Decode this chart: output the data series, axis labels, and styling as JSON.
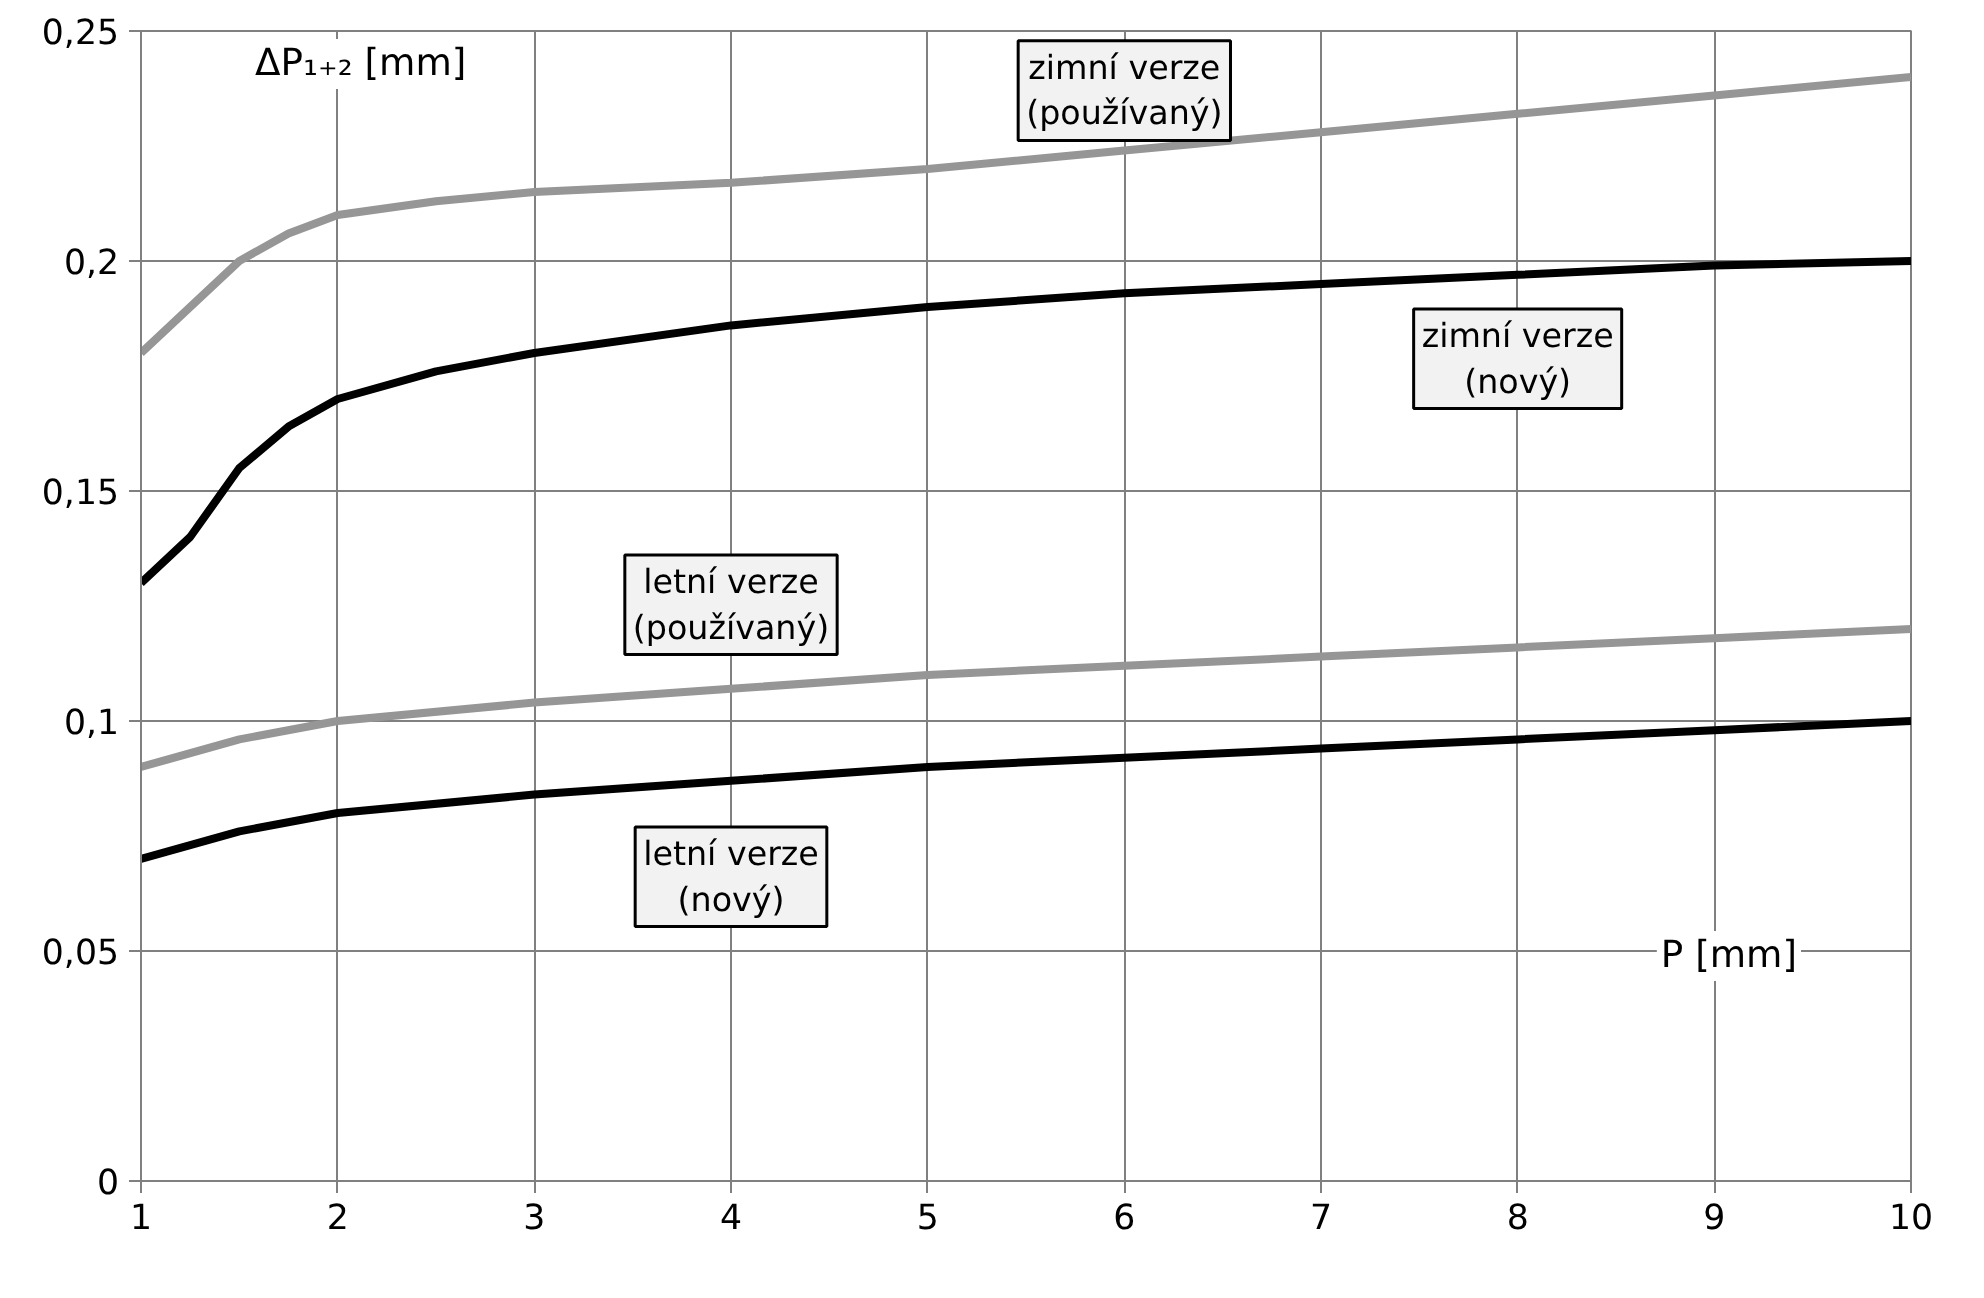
{
  "chart_data": {
    "type": "line",
    "xlabel": "P [mm]",
    "ylabel": "ΔP₁₊₂ [mm]",
    "xlim": [
      1,
      10
    ],
    "ylim": [
      0,
      0.25
    ],
    "xticks": [
      1,
      2,
      3,
      4,
      5,
      6,
      7,
      8,
      9,
      10
    ],
    "yticks": [
      {
        "value": 0,
        "label": "0"
      },
      {
        "value": 0.05,
        "label": "0,05"
      },
      {
        "value": 0.1,
        "label": "0,1"
      },
      {
        "value": 0.15,
        "label": "0,15"
      },
      {
        "value": 0.2,
        "label": "0,2"
      },
      {
        "value": 0.25,
        "label": "0,25"
      }
    ],
    "grid": true,
    "marker": "none",
    "line_style": "solid",
    "series": [
      {
        "name": "zimní verze\n(používaný)",
        "color": "#969696",
        "x": [
          1,
          1.25,
          1.5,
          1.75,
          2,
          2.5,
          3,
          4,
          5,
          6,
          7,
          8,
          9,
          10
        ],
        "values": [
          0.18,
          0.19,
          0.2,
          0.206,
          0.21,
          0.213,
          0.215,
          0.217,
          0.22,
          0.224,
          0.228,
          0.232,
          0.236,
          0.24
        ]
      },
      {
        "name": "zimní verze\n(nový)",
        "color": "#000000",
        "x": [
          1,
          1.25,
          1.5,
          1.75,
          2,
          2.5,
          3,
          4,
          5,
          6,
          7,
          8,
          9,
          10
        ],
        "values": [
          0.13,
          0.14,
          0.155,
          0.164,
          0.17,
          0.176,
          0.18,
          0.186,
          0.19,
          0.193,
          0.195,
          0.197,
          0.199,
          0.2
        ]
      },
      {
        "name": "letní verze\n(používaný)",
        "color": "#969696",
        "x": [
          1,
          1.5,
          2,
          3,
          4,
          5,
          6,
          7,
          8,
          9,
          10
        ],
        "values": [
          0.09,
          0.096,
          0.1,
          0.104,
          0.107,
          0.11,
          0.112,
          0.114,
          0.116,
          0.118,
          0.12
        ]
      },
      {
        "name": "letní verze\n(nový)",
        "color": "#000000",
        "x": [
          1,
          1.5,
          2,
          3,
          4,
          5,
          6,
          7,
          8,
          9,
          10
        ],
        "values": [
          0.07,
          0.076,
          0.08,
          0.084,
          0.087,
          0.09,
          0.092,
          0.094,
          0.096,
          0.098,
          0.1
        ]
      }
    ]
  }
}
